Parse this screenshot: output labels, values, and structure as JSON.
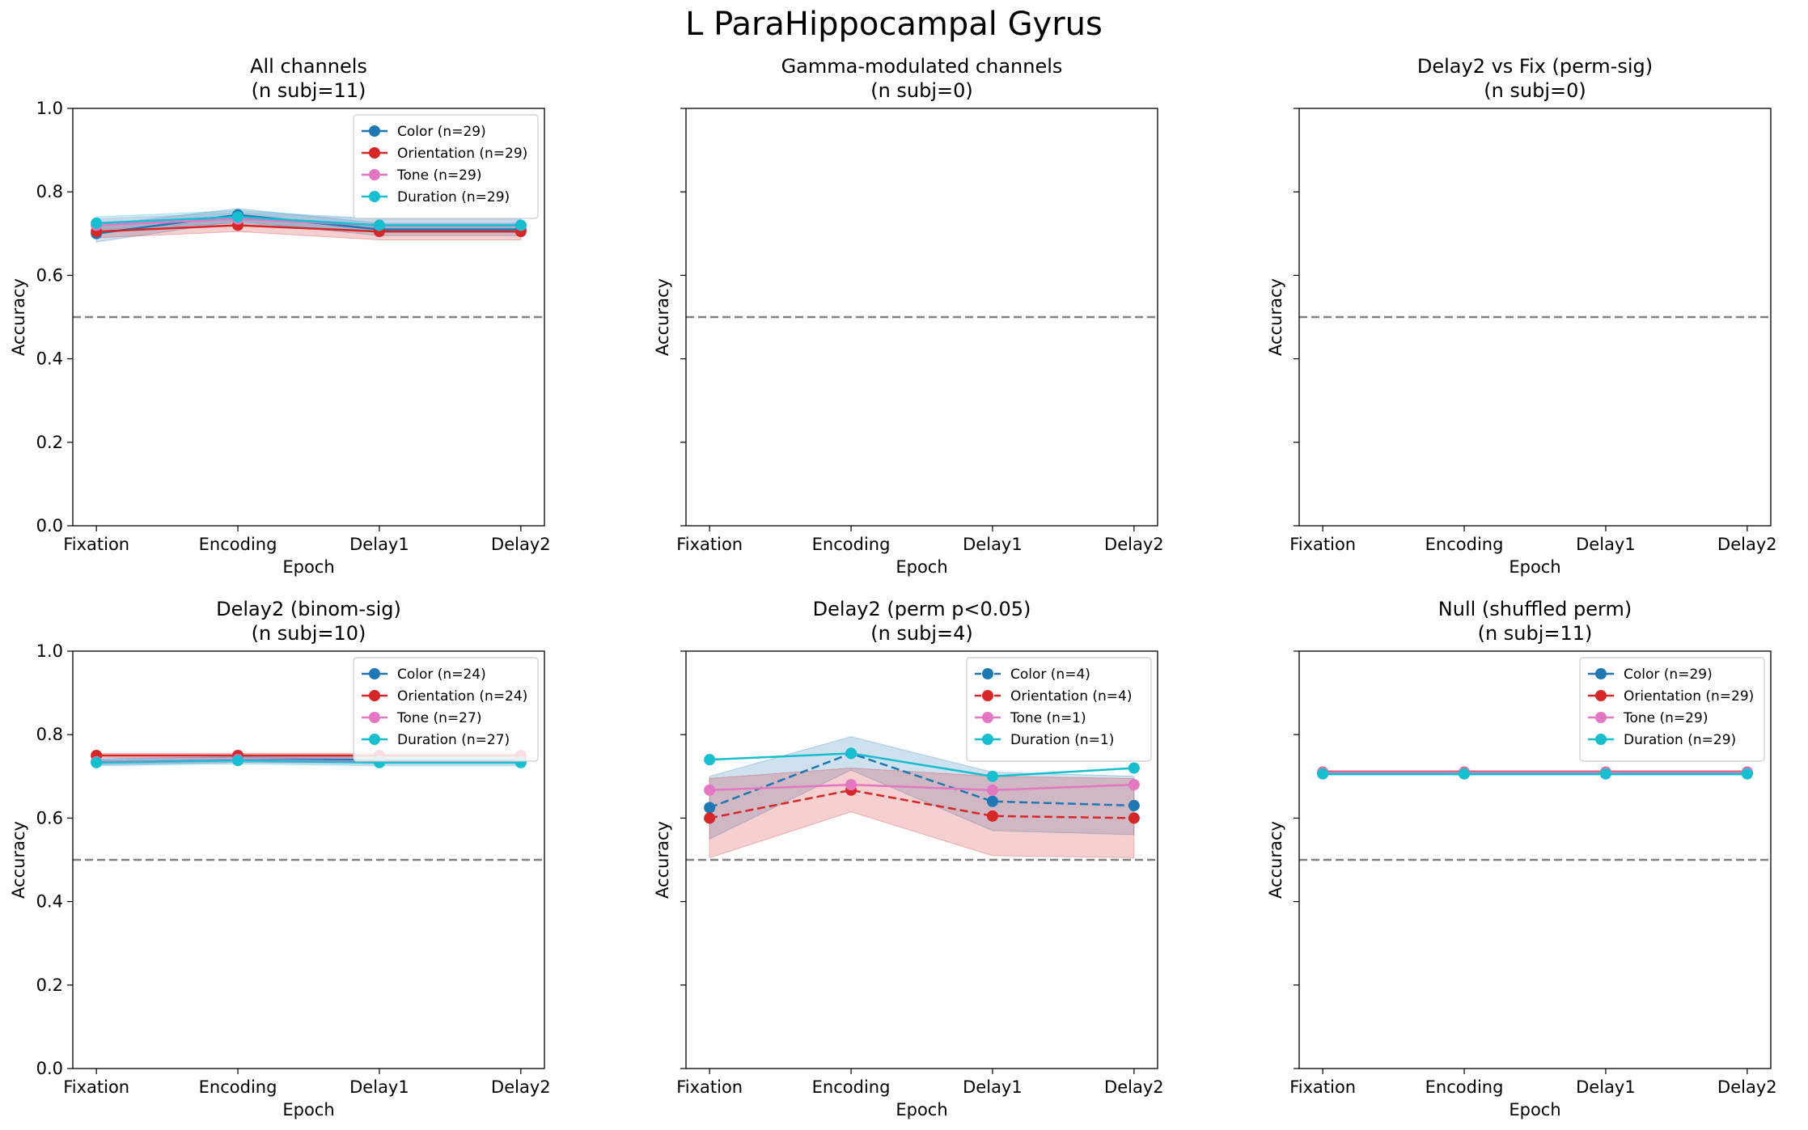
{
  "figure": {
    "title": "L ParaHippocampal Gyrus"
  },
  "colors": {
    "Color": "#1f77b4",
    "Orientation": "#d62728",
    "Tone": "#e377c2",
    "Duration": "#17becf",
    "chance": "#808080"
  },
  "chart_data": [
    {
      "type": "line",
      "title": "All channels",
      "subtitle": "(n subj=11)",
      "xlabel": "Epoch",
      "ylabel": "Accuracy",
      "categories": [
        "Fixation",
        "Encoding",
        "Delay1",
        "Delay2"
      ],
      "ylim": [
        0,
        1
      ],
      "yticks": [
        "0.0",
        "0.2",
        "0.4",
        "0.6",
        "0.8",
        "1.0"
      ],
      "show_yticklabels": true,
      "chance": 0.5,
      "legend": "top-right",
      "series": [
        {
          "name": "Color (n=29)",
          "key": "Color",
          "dashed": false,
          "values": [
            0.7,
            0.745,
            0.71,
            0.71
          ],
          "lower": [
            0.68,
            0.73,
            0.695,
            0.695
          ],
          "upper": [
            0.72,
            0.76,
            0.725,
            0.725
          ]
        },
        {
          "name": "Orientation (n=29)",
          "key": "Orientation",
          "dashed": false,
          "values": [
            0.705,
            0.72,
            0.705,
            0.705
          ],
          "lower": [
            0.69,
            0.705,
            0.685,
            0.685
          ],
          "upper": [
            0.72,
            0.735,
            0.72,
            0.72
          ]
        },
        {
          "name": "Tone (n=29)",
          "key": "Tone",
          "dashed": false,
          "values": [
            0.72,
            0.735,
            0.72,
            0.72
          ],
          "lower": [
            0.705,
            0.72,
            0.705,
            0.705
          ],
          "upper": [
            0.735,
            0.75,
            0.735,
            0.735
          ]
        },
        {
          "name": "Duration (n=29)",
          "key": "Duration",
          "dashed": false,
          "values": [
            0.725,
            0.74,
            0.72,
            0.72
          ],
          "lower": [
            0.71,
            0.725,
            0.705,
            0.705
          ],
          "upper": [
            0.74,
            0.755,
            0.735,
            0.735
          ]
        }
      ]
    },
    {
      "type": "line",
      "title": "Gamma-modulated channels",
      "subtitle": "(n subj=0)",
      "xlabel": "Epoch",
      "ylabel": "Accuracy",
      "categories": [
        "Fixation",
        "Encoding",
        "Delay1",
        "Delay2"
      ],
      "ylim": [
        0,
        1
      ],
      "yticks": [
        "0.0",
        "0.2",
        "0.4",
        "0.6",
        "0.8",
        "1.0"
      ],
      "show_yticklabels": false,
      "chance": 0.5,
      "legend": "",
      "series": []
    },
    {
      "type": "line",
      "title": "Delay2 vs Fix (perm-sig)",
      "subtitle": "(n subj=0)",
      "xlabel": "Epoch",
      "ylabel": "Accuracy",
      "categories": [
        "Fixation",
        "Encoding",
        "Delay1",
        "Delay2"
      ],
      "ylim": [
        0,
        1
      ],
      "yticks": [
        "0.0",
        "0.2",
        "0.4",
        "0.6",
        "0.8",
        "1.0"
      ],
      "show_yticklabels": false,
      "chance": 0.5,
      "legend": "",
      "series": []
    },
    {
      "type": "line",
      "title": "Delay2 (binom-sig)",
      "subtitle": "(n subj=10)",
      "xlabel": "Epoch",
      "ylabel": "Accuracy",
      "categories": [
        "Fixation",
        "Encoding",
        "Delay1",
        "Delay2"
      ],
      "ylim": [
        0,
        1
      ],
      "yticks": [
        "0.0",
        "0.2",
        "0.4",
        "0.6",
        "0.8",
        "1.0"
      ],
      "show_yticklabels": true,
      "chance": 0.5,
      "legend": "top-right",
      "series": [
        {
          "name": "Color (n=24)",
          "key": "Color",
          "dashed": false,
          "values": [
            0.735,
            0.74,
            0.74,
            0.74
          ],
          "lower": [
            0.728,
            0.733,
            0.733,
            0.733
          ],
          "upper": [
            0.742,
            0.747,
            0.747,
            0.747
          ]
        },
        {
          "name": "Orientation (n=24)",
          "key": "Orientation",
          "dashed": false,
          "values": [
            0.75,
            0.75,
            0.75,
            0.75
          ],
          "lower": [
            0.745,
            0.745,
            0.745,
            0.745
          ],
          "upper": [
            0.755,
            0.755,
            0.755,
            0.755
          ]
        },
        {
          "name": "Tone (n=27)",
          "key": "Tone",
          "dashed": false,
          "values": [
            0.735,
            0.74,
            0.735,
            0.735
          ],
          "lower": [
            0.728,
            0.733,
            0.728,
            0.728
          ],
          "upper": [
            0.742,
            0.747,
            0.742,
            0.742
          ]
        },
        {
          "name": "Duration (n=27)",
          "key": "Duration",
          "dashed": false,
          "values": [
            0.733,
            0.738,
            0.733,
            0.733
          ],
          "lower": [
            0.725,
            0.73,
            0.725,
            0.725
          ],
          "upper": [
            0.741,
            0.746,
            0.741,
            0.741
          ]
        }
      ]
    },
    {
      "type": "line",
      "title": "Delay2 (perm p<0.05)",
      "subtitle": "(n subj=4)",
      "xlabel": "Epoch",
      "ylabel": "Accuracy",
      "categories": [
        "Fixation",
        "Encoding",
        "Delay1",
        "Delay2"
      ],
      "ylim": [
        0,
        1
      ],
      "yticks": [
        "0.0",
        "0.2",
        "0.4",
        "0.6",
        "0.8",
        "1.0"
      ],
      "show_yticklabels": false,
      "chance": 0.5,
      "legend": "top-right",
      "series": [
        {
          "name": "Color (n=4)",
          "key": "Color",
          "dashed": true,
          "values": [
            0.625,
            0.755,
            0.64,
            0.63
          ],
          "lower": [
            0.55,
            0.715,
            0.57,
            0.56
          ],
          "upper": [
            0.7,
            0.795,
            0.71,
            0.7
          ]
        },
        {
          "name": "Orientation (n=4)",
          "key": "Orientation",
          "dashed": true,
          "values": [
            0.6,
            0.667,
            0.605,
            0.6
          ],
          "lower": [
            0.505,
            0.615,
            0.51,
            0.505
          ],
          "upper": [
            0.695,
            0.72,
            0.7,
            0.695
          ]
        },
        {
          "name": "Tone (n=1)",
          "key": "Tone",
          "dashed": false,
          "values": [
            0.667,
            0.68,
            0.667,
            0.68
          ],
          "lower": null,
          "upper": null
        },
        {
          "name": "Duration (n=1)",
          "key": "Duration",
          "dashed": false,
          "values": [
            0.74,
            0.755,
            0.7,
            0.72
          ],
          "lower": null,
          "upper": null
        }
      ]
    },
    {
      "type": "line",
      "title": "Null (shuffled perm)",
      "subtitle": "(n subj=11)",
      "xlabel": "Epoch",
      "ylabel": "Accuracy",
      "categories": [
        "Fixation",
        "Encoding",
        "Delay1",
        "Delay2"
      ],
      "ylim": [
        0,
        1
      ],
      "yticks": [
        "0.0",
        "0.2",
        "0.4",
        "0.6",
        "0.8",
        "1.0"
      ],
      "show_yticklabels": false,
      "chance": 0.5,
      "legend": "top-right",
      "series": [
        {
          "name": "Color (n=29)",
          "key": "Color",
          "dashed": false,
          "values": [
            0.708,
            0.708,
            0.708,
            0.708
          ],
          "lower": [
            0.704,
            0.704,
            0.704,
            0.704
          ],
          "upper": [
            0.712,
            0.712,
            0.712,
            0.712
          ]
        },
        {
          "name": "Orientation (n=29)",
          "key": "Orientation",
          "dashed": false,
          "values": [
            0.71,
            0.71,
            0.71,
            0.71
          ],
          "lower": [
            0.706,
            0.706,
            0.706,
            0.706
          ],
          "upper": [
            0.714,
            0.714,
            0.714,
            0.714
          ]
        },
        {
          "name": "Tone (n=29)",
          "key": "Tone",
          "dashed": false,
          "values": [
            0.709,
            0.709,
            0.709,
            0.709
          ],
          "lower": [
            0.705,
            0.705,
            0.705,
            0.705
          ],
          "upper": [
            0.713,
            0.713,
            0.713,
            0.713
          ]
        },
        {
          "name": "Duration (n=29)",
          "key": "Duration",
          "dashed": false,
          "values": [
            0.706,
            0.706,
            0.706,
            0.706
          ],
          "lower": [
            0.702,
            0.702,
            0.702,
            0.702
          ],
          "upper": [
            0.71,
            0.71,
            0.71,
            0.71
          ]
        }
      ]
    }
  ]
}
